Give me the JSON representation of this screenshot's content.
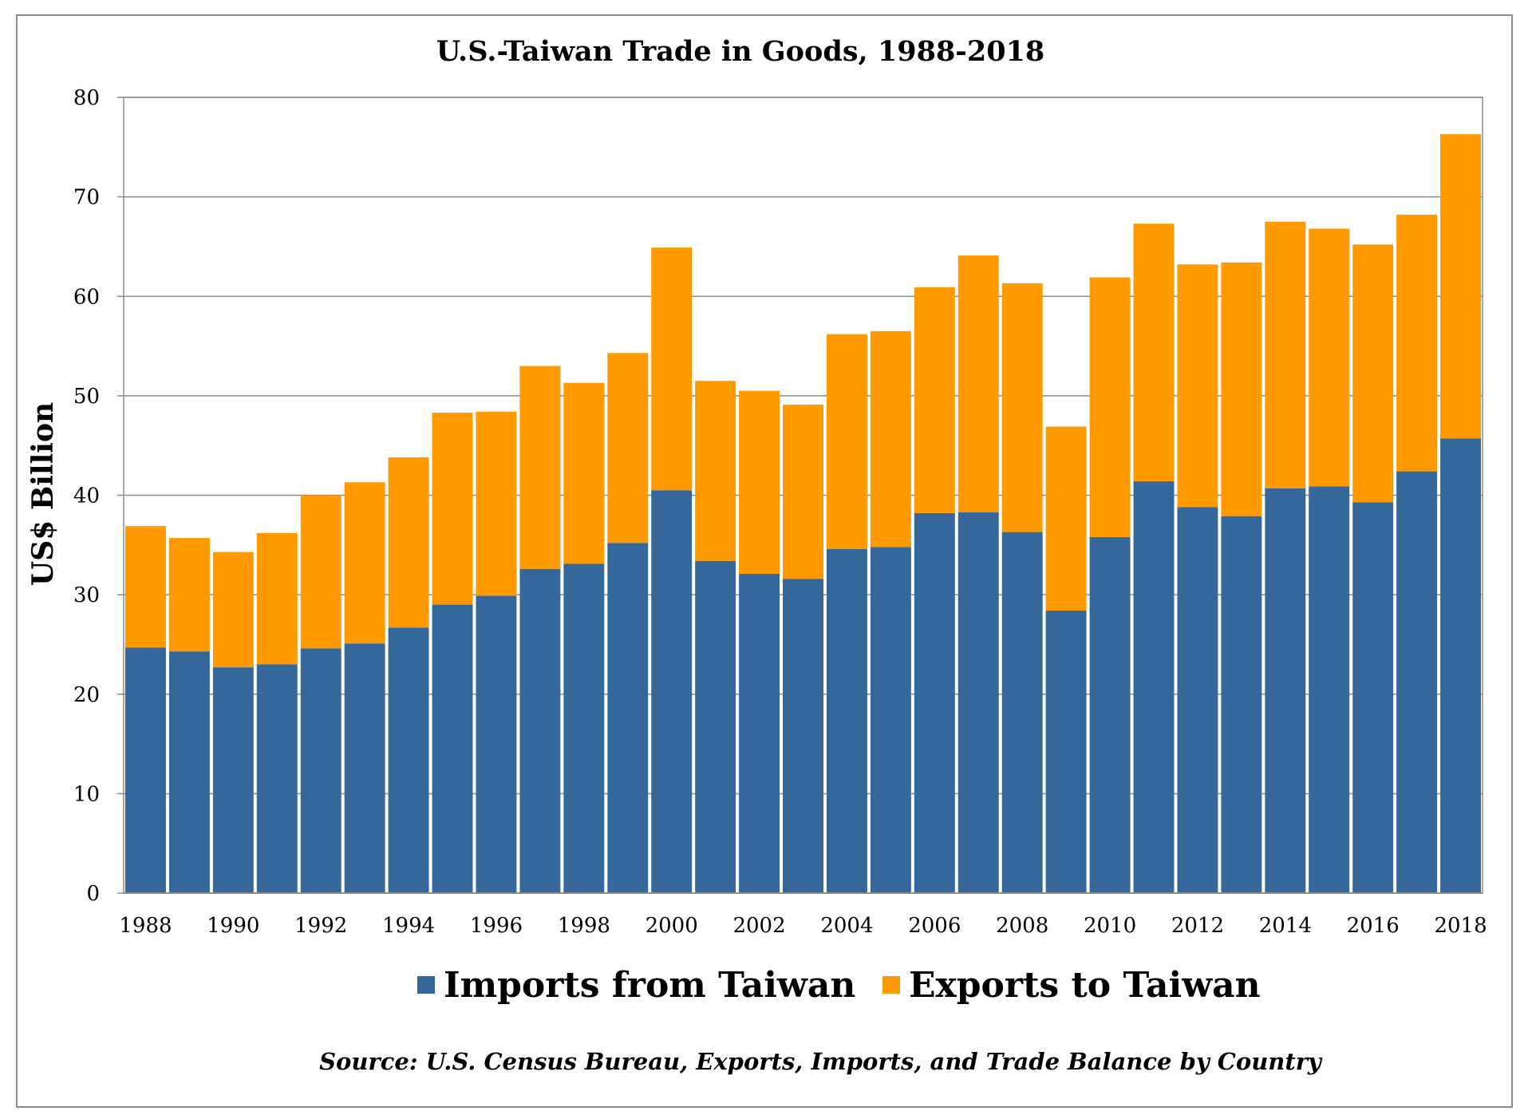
{
  "chart_data": {
    "type": "bar",
    "stacked": true,
    "title": "U.S.-Taiwan Trade in Goods, 1988-2018",
    "ylabel": "US$ Billion",
    "xlabel": "",
    "ylim": [
      0,
      80
    ],
    "yticks": [
      0,
      10,
      20,
      30,
      40,
      50,
      60,
      70,
      80
    ],
    "grid": true,
    "legend_position": "bottom",
    "categories": [
      "1988",
      "1989",
      "1990",
      "1991",
      "1992",
      "1993",
      "1994",
      "1995",
      "1996",
      "1997",
      "1998",
      "1999",
      "2000",
      "2001",
      "2002",
      "2003",
      "2004",
      "2005",
      "2006",
      "2007",
      "2008",
      "2009",
      "2010",
      "2011",
      "2012",
      "2013",
      "2014",
      "2015",
      "2016",
      "2017",
      "2018"
    ],
    "x_tick_labels": [
      "1988",
      "1990",
      "1992",
      "1994",
      "1996",
      "1998",
      "2000",
      "2002",
      "2004",
      "2006",
      "2008",
      "2010",
      "2012",
      "2014",
      "2016",
      "2018"
    ],
    "series": [
      {
        "name": "Imports from Taiwan",
        "color": "#35679a",
        "values": [
          24.7,
          24.3,
          22.7,
          23.0,
          24.6,
          25.1,
          26.7,
          29.0,
          29.9,
          32.6,
          33.1,
          35.2,
          40.5,
          33.4,
          32.1,
          31.6,
          34.6,
          34.8,
          38.2,
          38.3,
          36.3,
          28.4,
          35.8,
          41.4,
          38.8,
          37.9,
          40.7,
          40.9,
          39.3,
          42.4,
          45.7
        ]
      },
      {
        "name": "Exports to Taiwan",
        "color": "#ff9900",
        "values": [
          12.2,
          11.4,
          11.6,
          13.2,
          15.4,
          16.2,
          17.1,
          19.3,
          18.5,
          20.4,
          18.2,
          19.1,
          24.4,
          18.1,
          18.4,
          17.5,
          21.6,
          21.7,
          22.7,
          25.8,
          25.0,
          18.5,
          26.1,
          25.9,
          24.4,
          25.5,
          26.8,
          25.9,
          25.9,
          25.8,
          30.6
        ]
      }
    ],
    "source": "Source: U.S. Census Bureau, Exports, Imports, and Trade Balance by Country"
  }
}
